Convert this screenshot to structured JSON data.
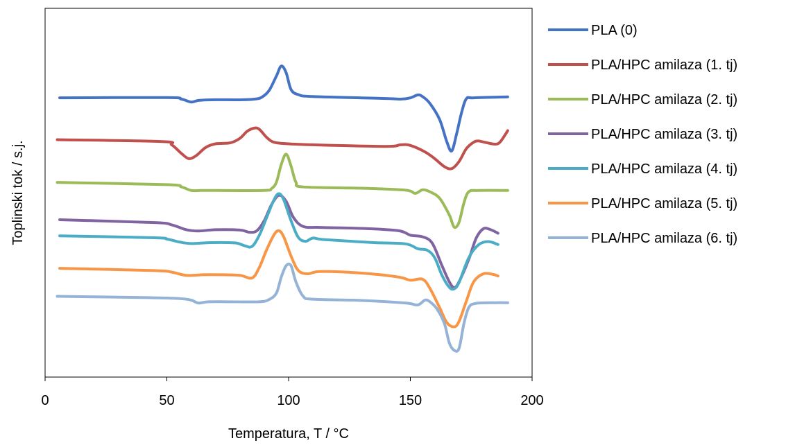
{
  "chart_data": {
    "type": "line",
    "title": "",
    "xlabel": "Temperatura, T / °C",
    "ylabel": "Toplinski tok / s.j.",
    "xlim": [
      0,
      200
    ],
    "ylim": [
      0,
      100
    ],
    "xticks": [
      0,
      50,
      100,
      150,
      200
    ],
    "grid": false,
    "legend_position": "right",
    "series": [
      {
        "name": "PLA (0)",
        "color": "#4472C4",
        "points": [
          [
            6,
            78.2
          ],
          [
            50,
            78.3
          ],
          [
            56,
            77.8
          ],
          [
            60,
            76.9
          ],
          [
            63,
            77.4
          ],
          [
            68,
            77.6
          ],
          [
            80,
            77.6
          ],
          [
            86,
            77.8
          ],
          [
            89,
            78.4
          ],
          [
            92,
            80.5
          ],
          [
            95,
            85.0
          ],
          [
            97,
            88.1
          ],
          [
            99,
            86.0
          ],
          [
            101,
            80.8
          ],
          [
            104,
            79.2
          ],
          [
            110,
            78.6
          ],
          [
            140,
            78.0
          ],
          [
            146,
            77.8
          ],
          [
            150,
            78.2
          ],
          [
            153,
            79.1
          ],
          [
            155,
            78.6
          ],
          [
            158,
            76.5
          ],
          [
            162,
            71.5
          ],
          [
            165,
            64.5
          ],
          [
            167,
            61.7
          ],
          [
            169,
            67.0
          ],
          [
            171,
            73.5
          ],
          [
            173,
            77.9
          ],
          [
            176,
            78.2
          ],
          [
            190,
            78.5
          ]
        ]
      },
      {
        "name": "PLA/HPC amilaza (1. tj)",
        "color": "#C0504D",
        "points": [
          [
            5,
            65.2
          ],
          [
            48,
            64.6
          ],
          [
            52,
            63.6
          ],
          [
            56,
            60.9
          ],
          [
            59,
            59.3
          ],
          [
            62,
            60.2
          ],
          [
            66,
            62.8
          ],
          [
            70,
            63.9
          ],
          [
            76,
            64.2
          ],
          [
            80,
            65.6
          ],
          [
            83,
            67.8
          ],
          [
            86,
            68.8
          ],
          [
            88,
            68.4
          ],
          [
            91,
            65.9
          ],
          [
            94,
            64.4
          ],
          [
            100,
            63.9
          ],
          [
            110,
            63.6
          ],
          [
            140,
            63.1
          ],
          [
            146,
            63.6
          ],
          [
            150,
            63.4
          ],
          [
            156,
            61.4
          ],
          [
            160,
            59.3
          ],
          [
            164,
            56.8
          ],
          [
            167,
            56.2
          ],
          [
            170,
            58.4
          ],
          [
            173,
            62.4
          ],
          [
            176,
            64.4
          ],
          [
            178,
            64.8
          ],
          [
            181,
            64.3
          ],
          [
            185,
            63.8
          ],
          [
            187,
            64.6
          ],
          [
            190,
            68.0
          ]
        ]
      },
      {
        "name": "PLA/HPC amilaza (2. tj)",
        "color": "#9BBB59",
        "points": [
          [
            5,
            51.9
          ],
          [
            50,
            51.2
          ],
          [
            56,
            50.5
          ],
          [
            60,
            49.4
          ],
          [
            64,
            49.4
          ],
          [
            70,
            49.4
          ],
          [
            90,
            49.4
          ],
          [
            93,
            50.0
          ],
          [
            95,
            52.0
          ],
          [
            97,
            57.5
          ],
          [
            99,
            60.7
          ],
          [
            101,
            57.0
          ],
          [
            103,
            52.0
          ],
          [
            106,
            50.5
          ],
          [
            130,
            50.1
          ],
          [
            148,
            49.5
          ],
          [
            152,
            48.5
          ],
          [
            155,
            49.6
          ],
          [
            158,
            49.0
          ],
          [
            162,
            47.0
          ],
          [
            166,
            41.8
          ],
          [
            168,
            38.0
          ],
          [
            170,
            39.5
          ],
          [
            172,
            45.5
          ],
          [
            174,
            49.0
          ],
          [
            178,
            49.4
          ],
          [
            190,
            49.4
          ]
        ]
      },
      {
        "name": "PLA/HPC amilaza (3. tj)",
        "color": "#8064A2",
        "points": [
          [
            6,
            40.3
          ],
          [
            45,
            39.4
          ],
          [
            52,
            38.7
          ],
          [
            58,
            37.2
          ],
          [
            63,
            36.8
          ],
          [
            70,
            37.2
          ],
          [
            80,
            37.1
          ],
          [
            84,
            36.4
          ],
          [
            87,
            36.9
          ],
          [
            90,
            40.0
          ],
          [
            93,
            45.0
          ],
          [
            96,
            47.9
          ],
          [
            99,
            46.0
          ],
          [
            102,
            41.0
          ],
          [
            106,
            38.2
          ],
          [
            113,
            37.9
          ],
          [
            130,
            37.6
          ],
          [
            145,
            36.9
          ],
          [
            150,
            35.5
          ],
          [
            155,
            35.0
          ],
          [
            159,
            33.0
          ],
          [
            163,
            26.0
          ],
          [
            166,
            21.0
          ],
          [
            168,
            19.2
          ],
          [
            170,
            21.0
          ],
          [
            174,
            28.0
          ],
          [
            177,
            34.5
          ],
          [
            180,
            37.5
          ],
          [
            183,
            37.2
          ],
          [
            186,
            36.1
          ]
        ]
      },
      {
        "name": "PLA/HPC amilaza (4. tj)",
        "color": "#4BACC6",
        "points": [
          [
            6,
            35.3
          ],
          [
            45,
            34.7
          ],
          [
            50,
            34.3
          ],
          [
            55,
            33.4
          ],
          [
            60,
            32.9
          ],
          [
            68,
            33.2
          ],
          [
            78,
            33.1
          ],
          [
            82,
            32.2
          ],
          [
            85,
            32.0
          ],
          [
            88,
            35.5
          ],
          [
            91,
            41.0
          ],
          [
            94,
            46.5
          ],
          [
            96,
            48.4
          ],
          [
            98,
            46.5
          ],
          [
            101,
            40.0
          ],
          [
            104,
            34.8
          ],
          [
            107,
            33.6
          ],
          [
            110,
            34.6
          ],
          [
            115,
            34.1
          ],
          [
            135,
            33.2
          ],
          [
            148,
            32.8
          ],
          [
            153,
            31.3
          ],
          [
            157,
            30.8
          ],
          [
            160,
            28.5
          ],
          [
            163,
            23.0
          ],
          [
            166,
            19.3
          ],
          [
            168,
            18.8
          ],
          [
            170,
            20.8
          ],
          [
            174,
            28.5
          ],
          [
            178,
            32.5
          ],
          [
            182,
            33.5
          ],
          [
            186,
            32.6
          ]
        ]
      },
      {
        "name": "PLA/HPC amilaza (5. tj)",
        "color": "#F79646",
        "points": [
          [
            6,
            25.2
          ],
          [
            45,
            24.5
          ],
          [
            52,
            24.0
          ],
          [
            58,
            23.0
          ],
          [
            65,
            23.2
          ],
          [
            72,
            23.2
          ],
          [
            80,
            23.0
          ],
          [
            85,
            22.2
          ],
          [
            88,
            25.5
          ],
          [
            91,
            31.0
          ],
          [
            94,
            35.6
          ],
          [
            96,
            36.9
          ],
          [
            98,
            35.0
          ],
          [
            101,
            29.0
          ],
          [
            104,
            24.5
          ],
          [
            108,
            23.5
          ],
          [
            113,
            24.2
          ],
          [
            130,
            23.7
          ],
          [
            145,
            22.5
          ],
          [
            150,
            21.5
          ],
          [
            155,
            21.8
          ],
          [
            158,
            19.0
          ],
          [
            162,
            13.0
          ],
          [
            165,
            8.3
          ],
          [
            168,
            7.0
          ],
          [
            170,
            8.7
          ],
          [
            173,
            15.0
          ],
          [
            176,
            21.0
          ],
          [
            180,
            23.5
          ],
          [
            184,
            23.3
          ],
          [
            186,
            22.8
          ]
        ]
      },
      {
        "name": "PLA/HPC amilaza (6. tj)",
        "color": "#95B3D7",
        "points": [
          [
            5,
            16.5
          ],
          [
            40,
            16.1
          ],
          [
            55,
            15.8
          ],
          [
            60,
            15.3
          ],
          [
            63,
            14.4
          ],
          [
            67,
            14.8
          ],
          [
            75,
            14.8
          ],
          [
            88,
            14.8
          ],
          [
            92,
            15.5
          ],
          [
            95,
            17.5
          ],
          [
            97,
            22.5
          ],
          [
            99,
            26.0
          ],
          [
            101,
            26.0
          ],
          [
            103,
            21.0
          ],
          [
            106,
            16.5
          ],
          [
            110,
            15.6
          ],
          [
            130,
            15.2
          ],
          [
            148,
            14.4
          ],
          [
            153,
            13.8
          ],
          [
            156,
            15.3
          ],
          [
            158,
            14.8
          ],
          [
            161,
            12.5
          ],
          [
            164,
            8.0
          ],
          [
            166,
            2.0
          ],
          [
            168,
            -0.3
          ],
          [
            170,
            0.3
          ],
          [
            172,
            8.0
          ],
          [
            174,
            13.0
          ],
          [
            177,
            14.3
          ],
          [
            185,
            14.5
          ],
          [
            190,
            14.5
          ]
        ]
      }
    ]
  }
}
